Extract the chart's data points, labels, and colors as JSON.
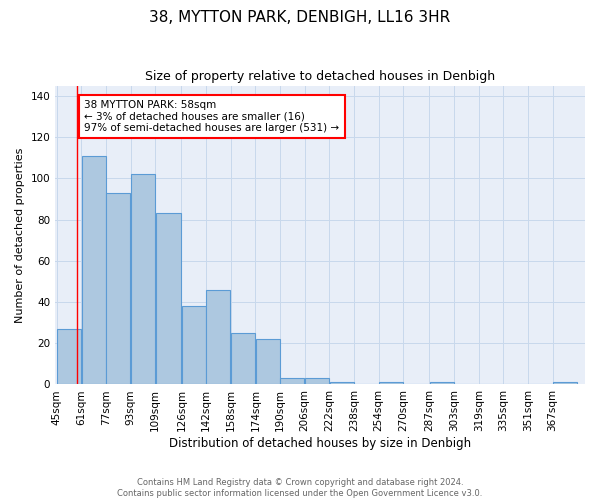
{
  "title": "38, MYTTON PARK, DENBIGH, LL16 3HR",
  "subtitle": "Size of property relative to detached houses in Denbigh",
  "xlabel": "Distribution of detached houses by size in Denbigh",
  "ylabel": "Number of detached properties",
  "footnote1": "Contains HM Land Registry data © Crown copyright and database right 2024.",
  "footnote2": "Contains public sector information licensed under the Open Government Licence v3.0.",
  "bin_labels": [
    "45sqm",
    "61sqm",
    "77sqm",
    "93sqm",
    "109sqm",
    "126sqm",
    "142sqm",
    "158sqm",
    "174sqm",
    "190sqm",
    "206sqm",
    "222sqm",
    "238sqm",
    "254sqm",
    "270sqm",
    "287sqm",
    "303sqm",
    "319sqm",
    "335sqm",
    "351sqm",
    "367sqm"
  ],
  "bar_heights": [
    27,
    111,
    93,
    102,
    83,
    38,
    46,
    25,
    22,
    3,
    3,
    1,
    0,
    1,
    0,
    1,
    0,
    0,
    0,
    0,
    1
  ],
  "bar_color": "#adc8e0",
  "bar_edge_color": "#5b9bd5",
  "grid_color": "#c8d8ec",
  "background_color": "#e8eef8",
  "annotation_box_text": "38 MYTTON PARK: 58sqm\n← 3% of detached houses are smaller (16)\n97% of semi-detached houses are larger (531) →",
  "annotation_box_edge_color": "red",
  "marker_line_color": "red",
  "ylim": [
    0,
    145
  ],
  "yticks": [
    0,
    20,
    40,
    60,
    80,
    100,
    120,
    140
  ],
  "property_size_sqm": 58,
  "bin_edges": [
    45,
    61,
    77,
    93,
    109,
    126,
    142,
    158,
    174,
    190,
    206,
    222,
    238,
    254,
    270,
    287,
    303,
    319,
    335,
    351,
    367,
    383
  ]
}
